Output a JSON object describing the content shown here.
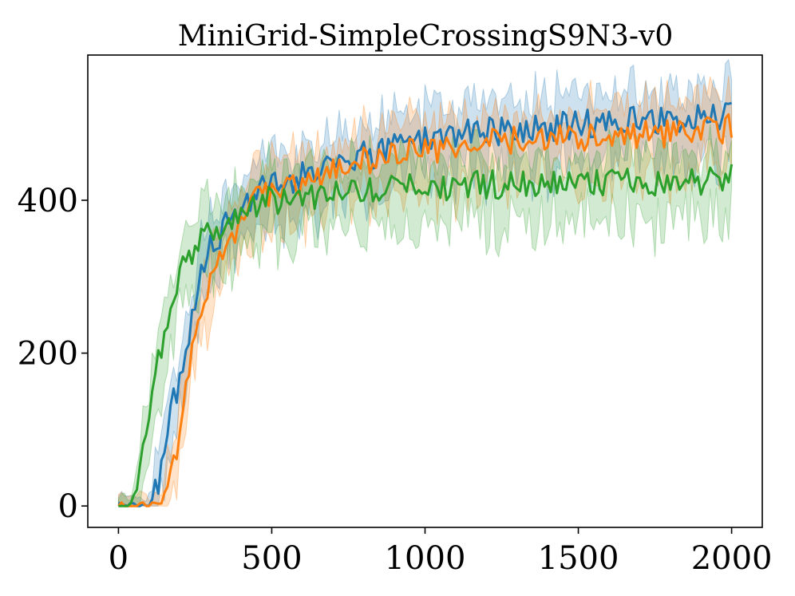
{
  "chart_data": {
    "type": "line",
    "title": "MiniGrid-SimpleCrossingS9N3-v0",
    "xlabel": "",
    "ylabel": "",
    "xlim": [
      -100,
      2100
    ],
    "ylim": [
      -28,
      590
    ],
    "x_ticks": [
      0,
      500,
      1000,
      1500,
      2000
    ],
    "x_tick_labels": [
      "0",
      "500",
      "1000",
      "1500",
      "2000"
    ],
    "y_ticks": [
      0,
      200,
      400
    ],
    "y_tick_labels": [
      "0",
      "200",
      "400"
    ],
    "grid": false,
    "legend": "none",
    "shaded_band": "variability band around each series",
    "series": [
      {
        "name": "blue",
        "color": "#1f77b4",
        "points": [
          [
            0,
            0
          ],
          [
            50,
            0
          ],
          [
            100,
            2
          ],
          [
            130,
            30
          ],
          [
            160,
            110
          ],
          [
            190,
            150
          ],
          [
            210,
            175
          ],
          [
            240,
            240
          ],
          [
            270,
            300
          ],
          [
            300,
            340
          ],
          [
            350,
            365
          ],
          [
            400,
            390
          ],
          [
            450,
            415
          ],
          [
            500,
            420
          ],
          [
            550,
            415
          ],
          [
            600,
            435
          ],
          [
            650,
            440
          ],
          [
            700,
            448
          ],
          [
            750,
            452
          ],
          [
            800,
            458
          ],
          [
            850,
            462
          ],
          [
            900,
            470
          ],
          [
            950,
            476
          ],
          [
            1000,
            480
          ],
          [
            1100,
            485
          ],
          [
            1200,
            490
          ],
          [
            1300,
            492
          ],
          [
            1400,
            495
          ],
          [
            1500,
            500
          ],
          [
            1600,
            502
          ],
          [
            1700,
            505
          ],
          [
            1800,
            505
          ],
          [
            1900,
            506
          ],
          [
            2000,
            510
          ]
        ]
      },
      {
        "name": "orange",
        "color": "#ff7f0e",
        "points": [
          [
            0,
            0
          ],
          [
            80,
            0
          ],
          [
            110,
            0
          ],
          [
            140,
            5
          ],
          [
            170,
            40
          ],
          [
            200,
            100
          ],
          [
            220,
            160
          ],
          [
            250,
            220
          ],
          [
            280,
            270
          ],
          [
            320,
            320
          ],
          [
            360,
            350
          ],
          [
            400,
            375
          ],
          [
            450,
            400
          ],
          [
            500,
            410
          ],
          [
            550,
            420
          ],
          [
            600,
            425
          ],
          [
            650,
            435
          ],
          [
            700,
            440
          ],
          [
            750,
            445
          ],
          [
            800,
            450
          ],
          [
            850,
            455
          ],
          [
            900,
            458
          ],
          [
            950,
            462
          ],
          [
            1000,
            465
          ],
          [
            1100,
            470
          ],
          [
            1200,
            475
          ],
          [
            1300,
            478
          ],
          [
            1400,
            480
          ],
          [
            1500,
            482
          ],
          [
            1600,
            485
          ],
          [
            1700,
            487
          ],
          [
            1800,
            488
          ],
          [
            1900,
            490
          ],
          [
            2000,
            495
          ]
        ]
      },
      {
        "name": "green",
        "color": "#2ca02c",
        "points": [
          [
            0,
            0
          ],
          [
            40,
            2
          ],
          [
            60,
            20
          ],
          [
            80,
            70
          ],
          [
            100,
            120
          ],
          [
            120,
            170
          ],
          [
            150,
            225
          ],
          [
            180,
            265
          ],
          [
            200,
            300
          ],
          [
            230,
            330
          ],
          [
            260,
            345
          ],
          [
            300,
            355
          ],
          [
            350,
            370
          ],
          [
            400,
            385
          ],
          [
            450,
            395
          ],
          [
            500,
            400
          ],
          [
            550,
            402
          ],
          [
            600,
            405
          ],
          [
            650,
            405
          ],
          [
            700,
            408
          ],
          [
            750,
            410
          ],
          [
            800,
            412
          ],
          [
            850,
            413
          ],
          [
            900,
            415
          ],
          [
            950,
            416
          ],
          [
            1000,
            417
          ],
          [
            1100,
            418
          ],
          [
            1200,
            420
          ],
          [
            1300,
            420
          ],
          [
            1400,
            421
          ],
          [
            1500,
            422
          ],
          [
            1600,
            423
          ],
          [
            1700,
            424
          ],
          [
            1800,
            425
          ],
          [
            1900,
            426
          ],
          [
            2000,
            430
          ]
        ]
      }
    ]
  }
}
